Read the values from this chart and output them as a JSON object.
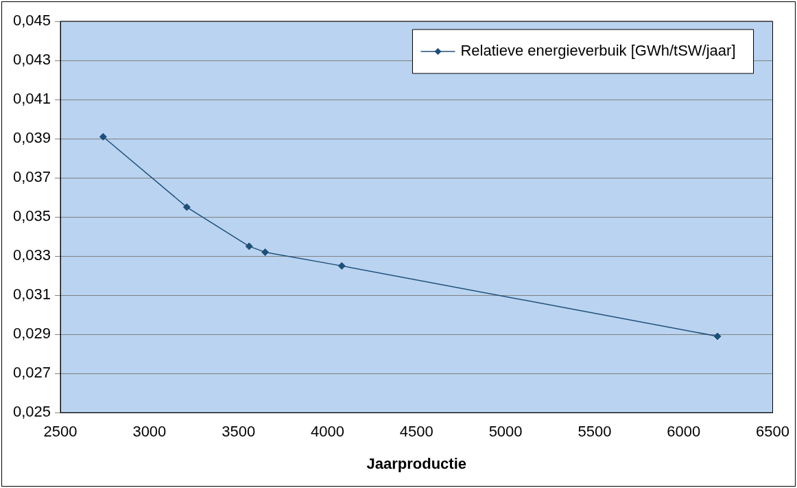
{
  "chart_data": {
    "type": "line",
    "xlabel": "Jaarproductie",
    "x": [
      2740,
      3210,
      3560,
      3650,
      4080,
      6190
    ],
    "series": [
      {
        "name": "Relatieve energieverbuik [GWh/tSW/jaar]",
        "color": "#1f4e79",
        "values": [
          0.0391,
          0.0355,
          0.0335,
          0.0332,
          0.0325,
          0.0289
        ]
      }
    ],
    "xlim": [
      2500,
      6500
    ],
    "xticks": [
      2500,
      3000,
      3500,
      4000,
      4500,
      5000,
      5500,
      6000,
      6500
    ],
    "ylim": [
      0.025,
      0.045
    ],
    "yticks": [
      {
        "value": 0.025,
        "label": "0,025"
      },
      {
        "value": 0.027,
        "label": "0,027"
      },
      {
        "value": 0.029,
        "label": "0,029"
      },
      {
        "value": 0.031,
        "label": "0,031"
      },
      {
        "value": 0.033,
        "label": "0,033"
      },
      {
        "value": 0.035,
        "label": "0,035"
      },
      {
        "value": 0.037,
        "label": "0,037"
      },
      {
        "value": 0.039,
        "label": "0,039"
      },
      {
        "value": 0.041,
        "label": "0,041"
      },
      {
        "value": 0.043,
        "label": "0,043"
      },
      {
        "value": 0.045,
        "label": "0,045"
      }
    ],
    "grid": "y",
    "legend": "top right",
    "marker": "diamond",
    "line_style": "solid"
  }
}
